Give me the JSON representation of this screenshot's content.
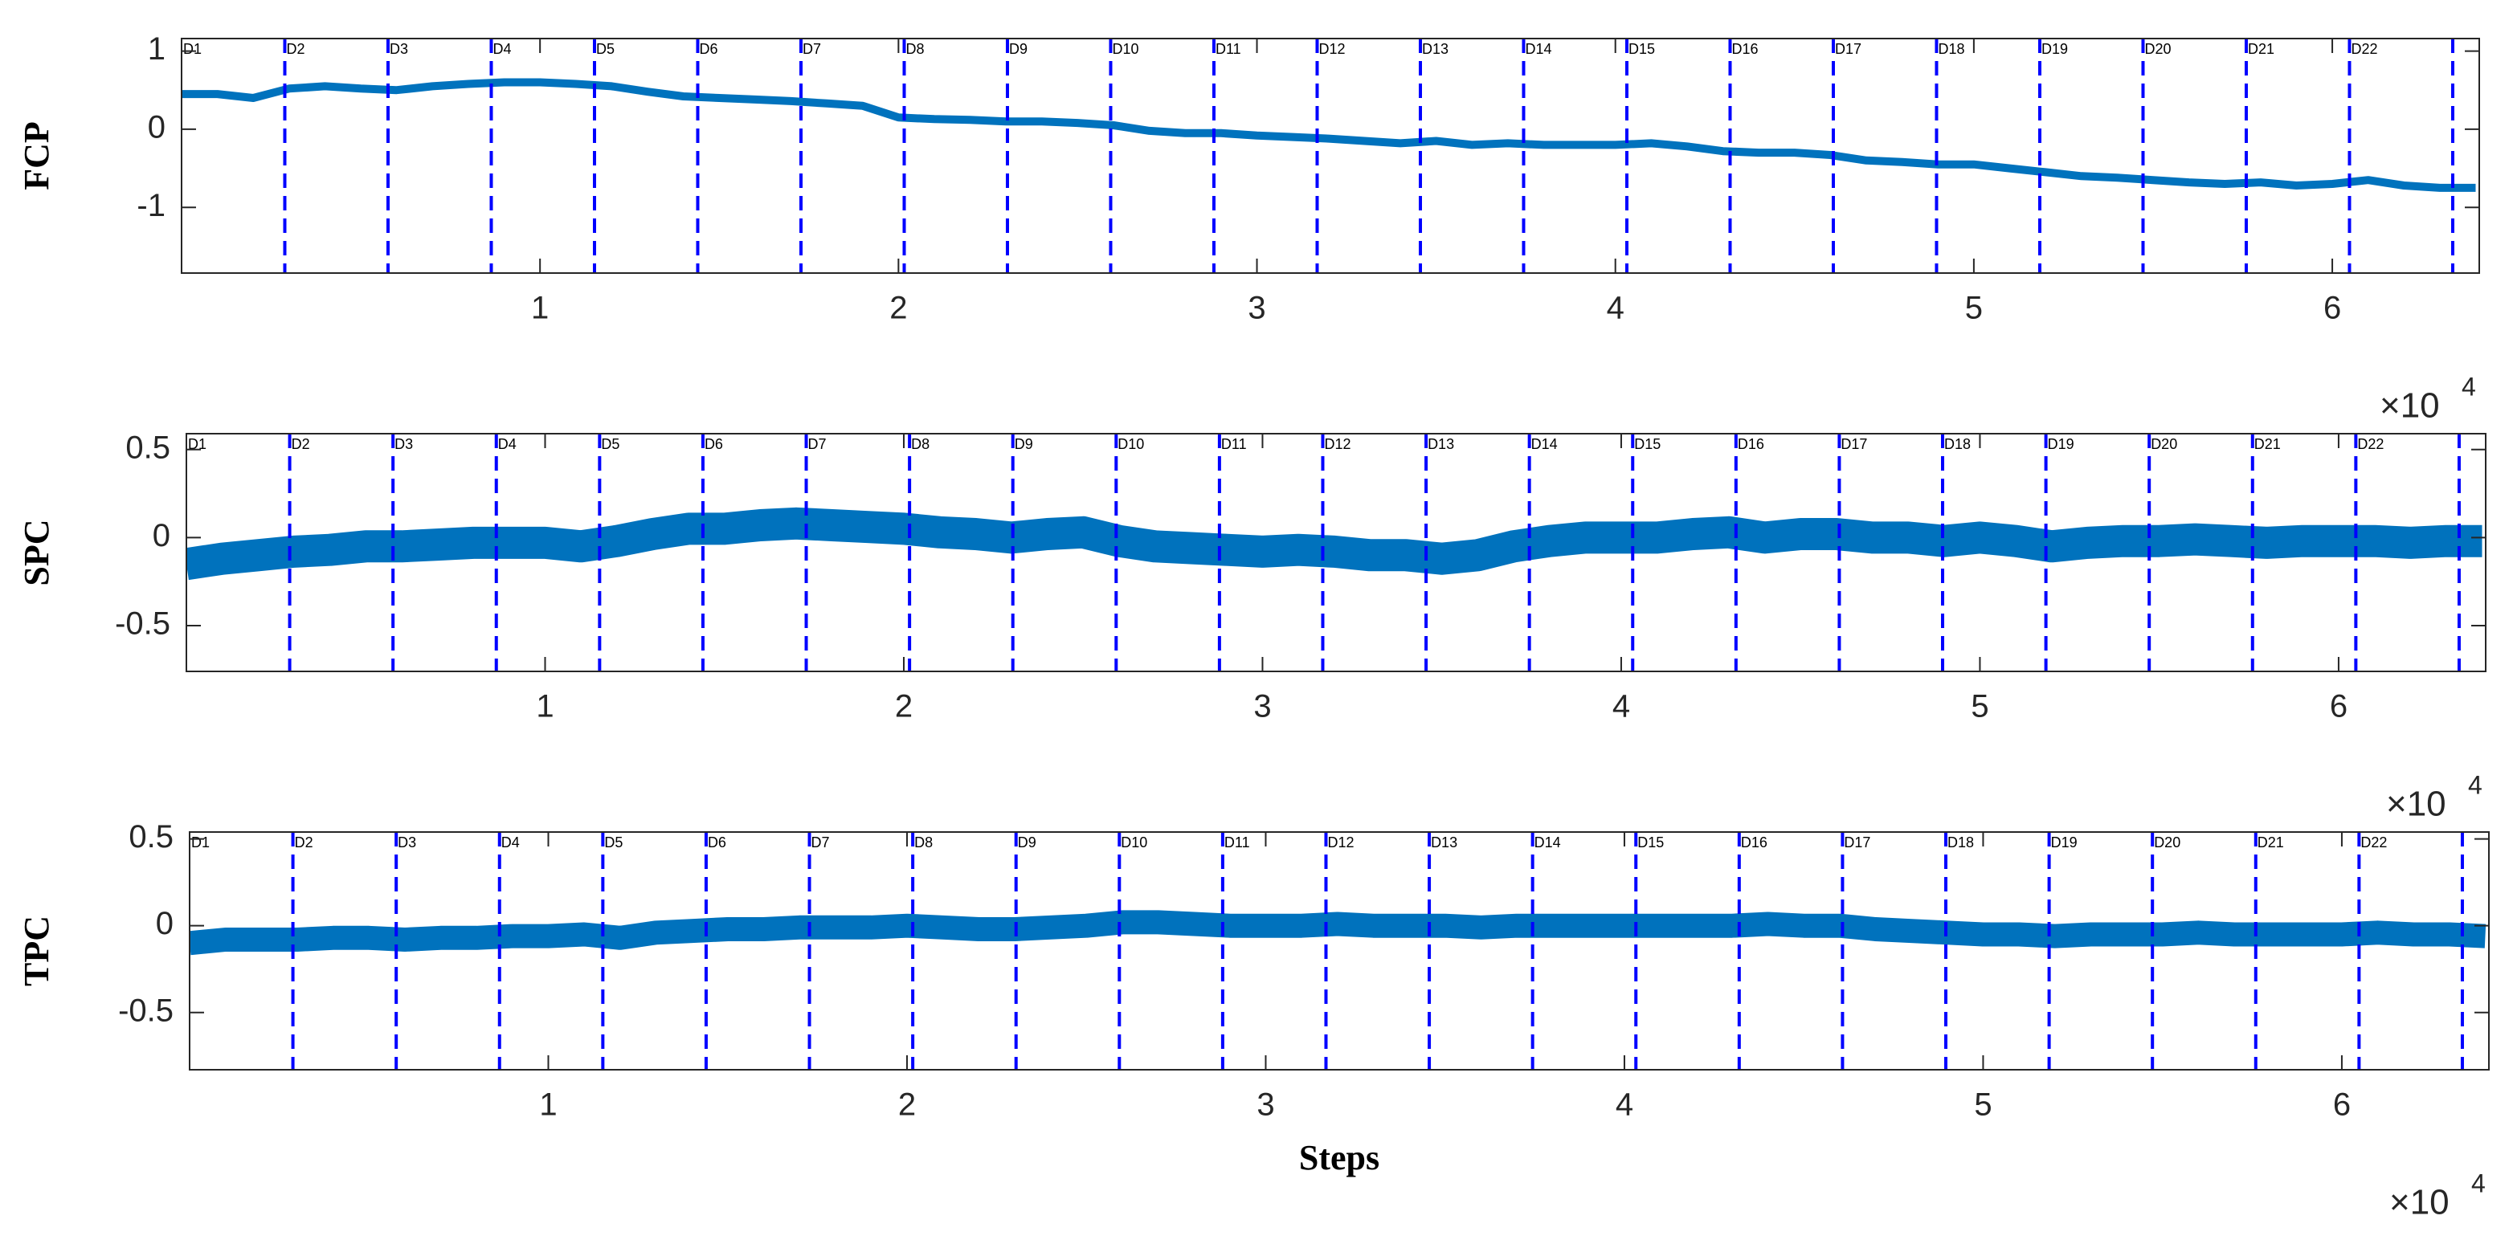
{
  "chart_data": [
    {
      "type": "line",
      "ylabel": "FCP",
      "x": [
        0,
        1000,
        2000,
        3000,
        4000,
        5000,
        6000,
        7000,
        8000,
        9000,
        10000,
        11000,
        12000,
        13000,
        14000,
        15000,
        16000,
        17000,
        18000,
        19000,
        20000,
        21000,
        22000,
        23000,
        24000,
        25000,
        26000,
        27000,
        28000,
        29000,
        30000,
        31000,
        32000,
        33000,
        34000,
        35000,
        36000,
        37000,
        38000,
        39000,
        40000,
        41000,
        42000,
        43000,
        44000,
        45000,
        46000,
        47000,
        48000,
        49000,
        50000,
        51000,
        52000,
        53000,
        54000,
        55000,
        56000,
        57000,
        58000,
        59000,
        60000,
        61000,
        62000,
        63000,
        64000
      ],
      "series": [
        {
          "color": "#0072bd",
          "values": [
            0.45,
            0.45,
            0.4,
            0.52,
            0.55,
            0.52,
            0.5,
            0.55,
            0.58,
            0.6,
            0.6,
            0.58,
            0.55,
            0.48,
            0.42,
            0.4,
            0.38,
            0.36,
            0.33,
            0.3,
            0.15,
            0.13,
            0.12,
            0.1,
            0.1,
            0.08,
            0.05,
            -0.02,
            -0.05,
            -0.05,
            -0.08,
            -0.1,
            -0.12,
            -0.15,
            -0.18,
            -0.15,
            -0.2,
            -0.18,
            -0.2,
            -0.2,
            -0.2,
            -0.18,
            -0.22,
            -0.28,
            -0.3,
            -0.3,
            -0.33,
            -0.4,
            -0.42,
            -0.45,
            -0.45,
            -0.5,
            -0.55,
            -0.6,
            -0.62,
            -0.65,
            -0.68,
            -0.7,
            -0.68,
            -0.72,
            -0.7,
            -0.65,
            -0.72,
            -0.75,
            -0.75
          ]
        }
      ],
      "xlim": [
        0,
        64100
      ],
      "ylim": [
        -1.84,
        1.16
      ],
      "xticks": [
        {
          "value": 10000,
          "label": "1"
        },
        {
          "value": 20000,
          "label": "2"
        },
        {
          "value": 30000,
          "label": "3"
        },
        {
          "value": 40000,
          "label": "4"
        },
        {
          "value": 50000,
          "label": "5"
        },
        {
          "value": 60000,
          "label": "6"
        }
      ],
      "yticks": [
        -1,
        0,
        1
      ],
      "x_multiplier": "×10",
      "x_multiplier_exponent": "4",
      "vlines_color": "#0000ff",
      "vlines": [
        2880,
        5760,
        8640,
        11520,
        14400,
        17280,
        20160,
        23040,
        25920,
        28800,
        31680,
        34560,
        37440,
        40320,
        43200,
        46080,
        48960,
        51840,
        54720,
        57600,
        60480,
        63360
      ],
      "annotations": [
        {
          "x": 0,
          "text": "D1"
        },
        {
          "x": 2880,
          "text": "D2"
        },
        {
          "x": 5760,
          "text": "D3"
        },
        {
          "x": 8640,
          "text": "D4"
        },
        {
          "x": 11520,
          "text": "D5"
        },
        {
          "x": 14400,
          "text": "D6"
        },
        {
          "x": 17280,
          "text": "D7"
        },
        {
          "x": 20160,
          "text": "D8"
        },
        {
          "x": 23040,
          "text": "D9"
        },
        {
          "x": 25920,
          "text": "D10"
        },
        {
          "x": 28800,
          "text": "D11"
        },
        {
          "x": 31680,
          "text": "D12"
        },
        {
          "x": 34560,
          "text": "D13"
        },
        {
          "x": 37440,
          "text": "D14"
        },
        {
          "x": 40320,
          "text": "D15"
        },
        {
          "x": 43200,
          "text": "D16"
        },
        {
          "x": 46080,
          "text": "D17"
        },
        {
          "x": 48960,
          "text": "D18"
        },
        {
          "x": 51840,
          "text": "D19"
        },
        {
          "x": 54720,
          "text": "D20"
        },
        {
          "x": 57600,
          "text": "D21"
        },
        {
          "x": 60480,
          "text": "D22"
        }
      ]
    },
    {
      "type": "line",
      "ylabel": "SPC",
      "x": [
        0,
        1000,
        2000,
        3000,
        4000,
        5000,
        6000,
        7000,
        8000,
        9000,
        10000,
        11000,
        12000,
        13000,
        14000,
        15000,
        16000,
        17000,
        18000,
        19000,
        20000,
        21000,
        22000,
        23000,
        24000,
        25000,
        26000,
        27000,
        28000,
        29000,
        30000,
        31000,
        32000,
        33000,
        34000,
        35000,
        36000,
        37000,
        38000,
        39000,
        40000,
        41000,
        42000,
        43000,
        44000,
        45000,
        46000,
        47000,
        48000,
        49000,
        50000,
        51000,
        52000,
        53000,
        54000,
        55000,
        56000,
        57000,
        58000,
        59000,
        60000,
        61000,
        62000,
        63000,
        64000
      ],
      "series": [
        {
          "color": "#0072bd",
          "values": [
            -0.15,
            -0.12,
            -0.1,
            -0.08,
            -0.07,
            -0.05,
            -0.05,
            -0.04,
            -0.03,
            -0.03,
            -0.03,
            -0.05,
            -0.02,
            0.02,
            0.05,
            0.05,
            0.07,
            0.08,
            0.07,
            0.06,
            0.05,
            0.03,
            0.02,
            0,
            0.02,
            0.03,
            -0.02,
            -0.05,
            -0.06,
            -0.07,
            -0.08,
            -0.07,
            -0.08,
            -0.1,
            -0.1,
            -0.12,
            -0.1,
            -0.05,
            -0.02,
            0,
            0,
            0,
            0.02,
            0.03,
            0,
            0.02,
            0.02,
            0,
            0,
            -0.02,
            0,
            -0.02,
            -0.05,
            -0.03,
            -0.02,
            -0.02,
            -0.01,
            -0.02,
            -0.03,
            -0.02,
            -0.02,
            -0.02,
            -0.03,
            -0.02,
            -0.02
          ]
        }
      ],
      "xlim": [
        0,
        64100
      ],
      "ylim": [
        -0.76,
        0.59
      ],
      "xticks": [
        {
          "value": 10000,
          "label": "1"
        },
        {
          "value": 20000,
          "label": "2"
        },
        {
          "value": 30000,
          "label": "3"
        },
        {
          "value": 40000,
          "label": "4"
        },
        {
          "value": 50000,
          "label": "5"
        },
        {
          "value": 60000,
          "label": "6"
        }
      ],
      "yticks": [
        -0.5,
        0,
        0.5
      ],
      "x_multiplier": "×10",
      "x_multiplier_exponent": "4",
      "vlines_color": "#0000ff",
      "vlines": [
        2880,
        5760,
        8640,
        11520,
        14400,
        17280,
        20160,
        23040,
        25920,
        28800,
        31680,
        34560,
        37440,
        40320,
        43200,
        46080,
        48960,
        51840,
        54720,
        57600,
        60480,
        63360
      ],
      "annotations": [
        {
          "x": 0,
          "text": "D1"
        },
        {
          "x": 2880,
          "text": "D2"
        },
        {
          "x": 5760,
          "text": "D3"
        },
        {
          "x": 8640,
          "text": "D4"
        },
        {
          "x": 11520,
          "text": "D5"
        },
        {
          "x": 14400,
          "text": "D6"
        },
        {
          "x": 17280,
          "text": "D7"
        },
        {
          "x": 20160,
          "text": "D8"
        },
        {
          "x": 23040,
          "text": "D9"
        },
        {
          "x": 25920,
          "text": "D10"
        },
        {
          "x": 28800,
          "text": "D11"
        },
        {
          "x": 31680,
          "text": "D12"
        },
        {
          "x": 34560,
          "text": "D13"
        },
        {
          "x": 37440,
          "text": "D14"
        },
        {
          "x": 40320,
          "text": "D15"
        },
        {
          "x": 43200,
          "text": "D16"
        },
        {
          "x": 46080,
          "text": "D17"
        },
        {
          "x": 48960,
          "text": "D18"
        },
        {
          "x": 51840,
          "text": "D19"
        },
        {
          "x": 54720,
          "text": "D20"
        },
        {
          "x": 57600,
          "text": "D21"
        },
        {
          "x": 60480,
          "text": "D22"
        }
      ]
    },
    {
      "type": "line",
      "ylabel": "TPC",
      "xlabel": "Steps",
      "x": [
        0,
        1000,
        2000,
        3000,
        4000,
        5000,
        6000,
        7000,
        8000,
        9000,
        10000,
        11000,
        12000,
        13000,
        14000,
        15000,
        16000,
        17000,
        18000,
        19000,
        20000,
        21000,
        22000,
        23000,
        24000,
        25000,
        26000,
        27000,
        28000,
        29000,
        30000,
        31000,
        32000,
        33000,
        34000,
        35000,
        36000,
        37000,
        38000,
        39000,
        40000,
        41000,
        42000,
        43000,
        44000,
        45000,
        46000,
        47000,
        48000,
        49000,
        50000,
        51000,
        52000,
        53000,
        54000,
        55000,
        56000,
        57000,
        58000,
        59000,
        60000,
        61000,
        62000,
        63000,
        64000
      ],
      "series": [
        {
          "color": "#0072bd",
          "values": [
            -0.1,
            -0.08,
            -0.08,
            -0.08,
            -0.07,
            -0.07,
            -0.08,
            -0.07,
            -0.07,
            -0.06,
            -0.06,
            -0.05,
            -0.07,
            -0.04,
            -0.03,
            -0.02,
            -0.02,
            -0.01,
            -0.01,
            -0.01,
            0,
            -0.01,
            -0.02,
            -0.02,
            -0.01,
            0,
            0.02,
            0.02,
            0.01,
            0,
            0,
            0,
            0.01,
            0,
            0,
            0,
            -0.01,
            0,
            0,
            0,
            0,
            0,
            0,
            0,
            0.01,
            0,
            0,
            -0.02,
            -0.03,
            -0.04,
            -0.05,
            -0.05,
            -0.06,
            -0.05,
            -0.05,
            -0.05,
            -0.04,
            -0.05,
            -0.05,
            -0.05,
            -0.05,
            -0.04,
            -0.05,
            -0.05,
            -0.06
          ]
        }
      ],
      "xlim": [
        0,
        64100
      ],
      "ylim": [
        -0.83,
        0.54
      ],
      "xticks": [
        {
          "value": 10000,
          "label": "1"
        },
        {
          "value": 20000,
          "label": "2"
        },
        {
          "value": 30000,
          "label": "3"
        },
        {
          "value": 40000,
          "label": "4"
        },
        {
          "value": 50000,
          "label": "5"
        },
        {
          "value": 60000,
          "label": "6"
        }
      ],
      "yticks": [
        -0.5,
        0,
        0.5
      ],
      "x_multiplier": "×10",
      "x_multiplier_exponent": "4",
      "vlines_color": "#0000ff",
      "vlines": [
        2880,
        5760,
        8640,
        11520,
        14400,
        17280,
        20160,
        23040,
        25920,
        28800,
        31680,
        34560,
        37440,
        40320,
        43200,
        46080,
        48960,
        51840,
        54720,
        57600,
        60480,
        63360
      ],
      "annotations": [
        {
          "x": 0,
          "text": "D1"
        },
        {
          "x": 2880,
          "text": "D2"
        },
        {
          "x": 5760,
          "text": "D3"
        },
        {
          "x": 8640,
          "text": "D4"
        },
        {
          "x": 11520,
          "text": "D5"
        },
        {
          "x": 14400,
          "text": "D6"
        },
        {
          "x": 17280,
          "text": "D7"
        },
        {
          "x": 20160,
          "text": "D8"
        },
        {
          "x": 23040,
          "text": "D9"
        },
        {
          "x": 25920,
          "text": "D10"
        },
        {
          "x": 28800,
          "text": "D11"
        },
        {
          "x": 31680,
          "text": "D12"
        },
        {
          "x": 34560,
          "text": "D13"
        },
        {
          "x": 37440,
          "text": "D14"
        },
        {
          "x": 40320,
          "text": "D15"
        },
        {
          "x": 43200,
          "text": "D16"
        },
        {
          "x": 46080,
          "text": "D17"
        },
        {
          "x": 48960,
          "text": "D18"
        },
        {
          "x": 51840,
          "text": "D19"
        },
        {
          "x": 54720,
          "text": "D20"
        },
        {
          "x": 57600,
          "text": "D21"
        },
        {
          "x": 60480,
          "text": "D22"
        }
      ]
    }
  ]
}
